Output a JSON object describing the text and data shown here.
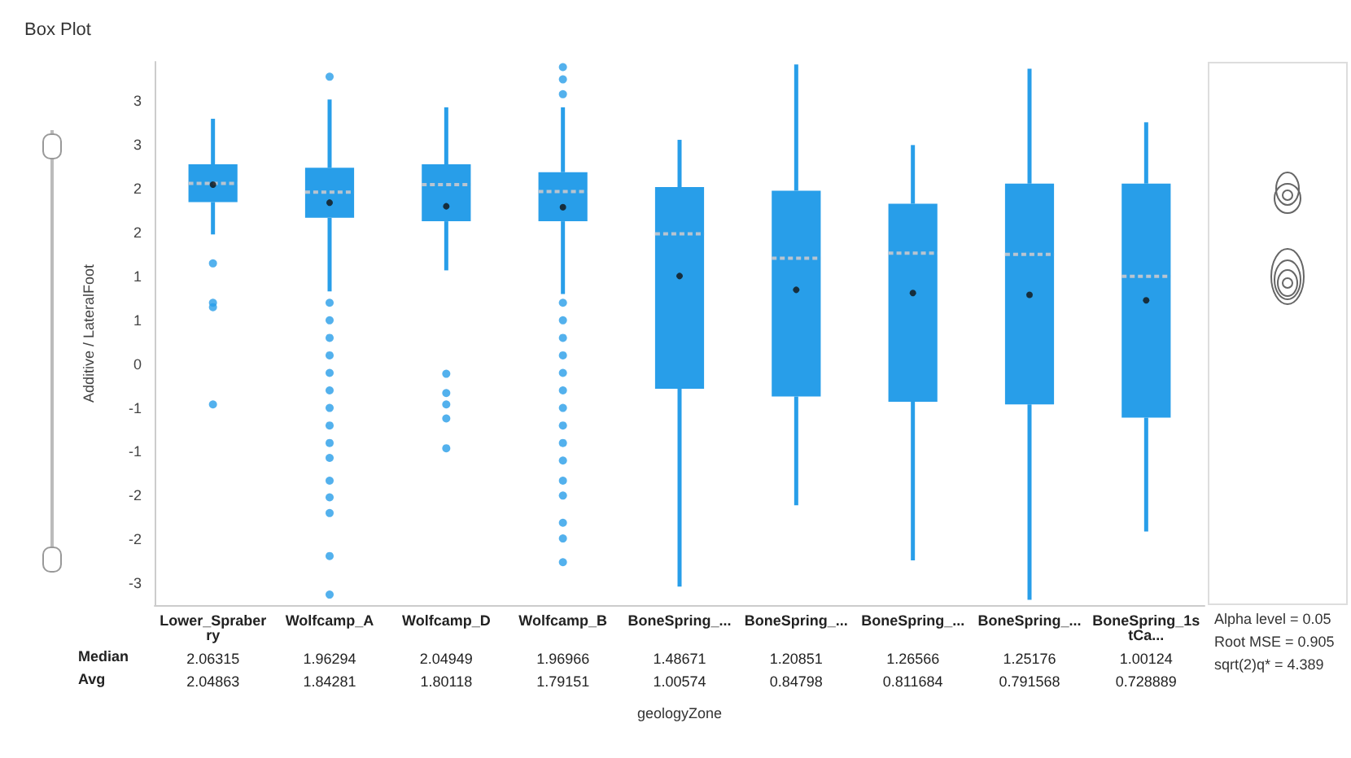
{
  "chart_data": {
    "type": "box",
    "title": "Box Plot",
    "ylabel": "Additive / LateralFoot",
    "xlabel": "geologyZone",
    "categories": [
      "Lower_Spraberry",
      "Wolfcamp_A",
      "Wolfcamp_D",
      "Wolfcamp_B",
      "BoneSpring_...",
      "BoneSpring_...",
      "BoneSpring_...",
      "BoneSpring_...",
      "BoneSpring_1stCa..."
    ],
    "series": [
      {
        "color": "#289ee9",
        "boxes": [
          {
            "low": 1.48,
            "q1": 1.85,
            "median": 2.06315,
            "q3": 2.28,
            "high": 2.8,
            "mean": 2.04863,
            "outliers": [
              1.15,
              0.7,
              0.65,
              -0.46
            ]
          },
          {
            "low": 0.83,
            "q1": 1.67,
            "median": 1.96294,
            "q3": 2.24,
            "high": 3.02,
            "mean": 1.84281,
            "outliers": [
              3.28,
              0.7,
              0.5,
              0.3,
              0.1,
              -0.1,
              -0.3,
              -0.5,
              -0.7,
              -0.9,
              -1.07,
              -1.33,
              -1.52,
              -1.7,
              -2.19,
              -2.63
            ]
          },
          {
            "low": 1.07,
            "q1": 1.63,
            "median": 2.04949,
            "q3": 2.28,
            "high": 2.93,
            "mean": 1.80118,
            "outliers": [
              -0.11,
              -0.33,
              -0.46,
              -0.62,
              -0.96
            ]
          },
          {
            "low": 0.8,
            "q1": 1.63,
            "median": 1.96966,
            "q3": 2.19,
            "high": 2.93,
            "mean": 1.79151,
            "outliers": [
              3.39,
              3.25,
              3.08,
              0.7,
              0.5,
              0.3,
              0.1,
              -0.1,
              -0.3,
              -0.5,
              -0.7,
              -0.9,
              -1.1,
              -1.33,
              -1.5,
              -1.81,
              -1.99,
              -2.26
            ]
          },
          {
            "low": -2.54,
            "q1": -0.28,
            "median": 1.48671,
            "q3": 2.02,
            "high": 2.56,
            "mean": 1.00574
          },
          {
            "low": -1.61,
            "q1": -0.37,
            "median": 1.20851,
            "q3": 1.98,
            "high": 3.42,
            "mean": 0.84798
          },
          {
            "low": -2.24,
            "q1": -0.43,
            "median": 1.26566,
            "q3": 1.83,
            "high": 2.5,
            "mean": 0.811684
          },
          {
            "low": -2.69,
            "q1": -0.46,
            "median": 1.25176,
            "q3": 2.06,
            "high": 3.37,
            "mean": 0.791568
          },
          {
            "low": -1.91,
            "q1": -0.61,
            "median": 1.00124,
            "q3": 2.06,
            "high": 2.76,
            "mean": 0.728889
          }
        ]
      }
    ],
    "ylim": [
      -2.75,
      3.45
    ],
    "yticks": [
      {
        "value": 3,
        "label": "3"
      },
      {
        "value": 2.5,
        "label": "3"
      },
      {
        "value": 2,
        "label": "2"
      },
      {
        "value": 1.5,
        "label": "2"
      },
      {
        "value": 1,
        "label": "1"
      },
      {
        "value": 0.5,
        "label": "1"
      },
      {
        "value": 0,
        "label": "0"
      },
      {
        "value": -0.5,
        "label": "-1"
      },
      {
        "value": -1,
        "label": "-1"
      },
      {
        "value": -1.5,
        "label": "-2"
      },
      {
        "value": -2,
        "label": "-2"
      },
      {
        "value": -2.5,
        "label": "-3"
      }
    ],
    "grid": false,
    "annotations": [
      "Median",
      "2.06315",
      "1.96294",
      "2.04949",
      "1.96966",
      "1.48671",
      "1.20851",
      "1.26566",
      "1.25176",
      "1.00124",
      "Avg",
      "2.04863",
      "1.84281",
      "1.80118",
      "1.79151",
      "1.00574",
      "0.84798",
      "0.811684",
      "0.791568",
      "0.728889",
      "Alpha level = 0.05",
      "Root MSE = 0.905",
      "sqrt(2)q* = 4.389"
    ]
  }
}
